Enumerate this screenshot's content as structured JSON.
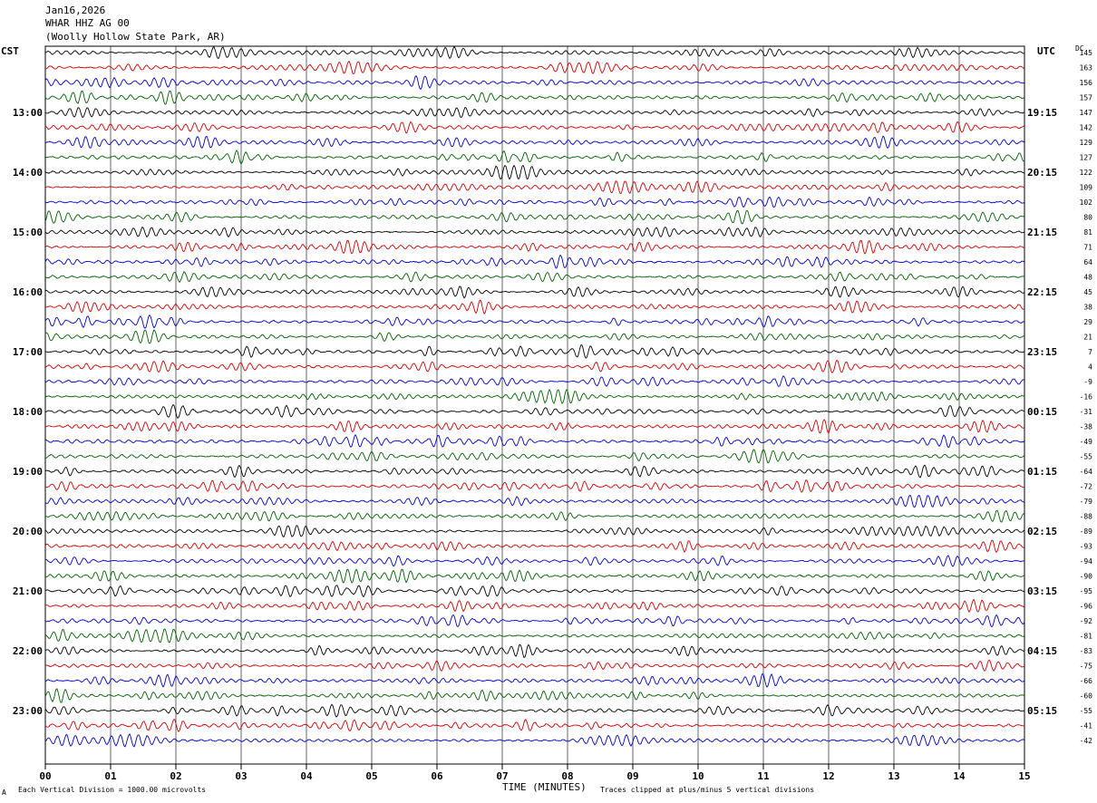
{
  "header": {
    "date": "Jan16,2026",
    "station": "WHAR HHZ AG 00",
    "location": "(Woolly Hollow State Park, AR)"
  },
  "left_tz": "CST",
  "right_tz": "UTC",
  "dc_label": "DC",
  "footer": {
    "scale_note": "Each Vertical Division = 1000.00 microvolts",
    "clip_note": "Traces clipped at plus/minus 5 vertical divisions",
    "corner_mark": "A"
  },
  "chart_data": {
    "type": "line",
    "xlabel": "TIME (MINUTES)",
    "x_ticks": [
      "00",
      "01",
      "02",
      "03",
      "04",
      "05",
      "06",
      "07",
      "08",
      "09",
      "10",
      "11",
      "12",
      "13",
      "14",
      "15"
    ],
    "xlim": [
      0,
      15
    ],
    "rows_per_hour": 4,
    "trace_colors": [
      "#000000",
      "#d00000",
      "#0000c8",
      "#006000"
    ],
    "hour_labels_left": [
      "13:00",
      "14:00",
      "15:00",
      "16:00",
      "17:00",
      "18:00",
      "19:00",
      "20:00",
      "21:00",
      "22:00",
      "23:00"
    ],
    "hour_labels_right": [
      "19:15",
      "20:15",
      "21:15",
      "22:15",
      "23:15",
      "00:15",
      "01:15",
      "02:15",
      "03:15",
      "04:15",
      "05:15"
    ],
    "dc_offsets": [
      145,
      163,
      156,
      157,
      147,
      142,
      129,
      127,
      122,
      109,
      102,
      80,
      81,
      71,
      64,
      48,
      45,
      38,
      29,
      21,
      7,
      4,
      -9,
      -16,
      -31,
      -38,
      -49,
      -55,
      -64,
      -72,
      -79,
      -88,
      -89,
      -93,
      -94,
      -90,
      -95,
      -96,
      -92,
      -81,
      -83,
      -75,
      -66,
      -60,
      -55,
      -41,
      -42
    ],
    "grid": true
  }
}
